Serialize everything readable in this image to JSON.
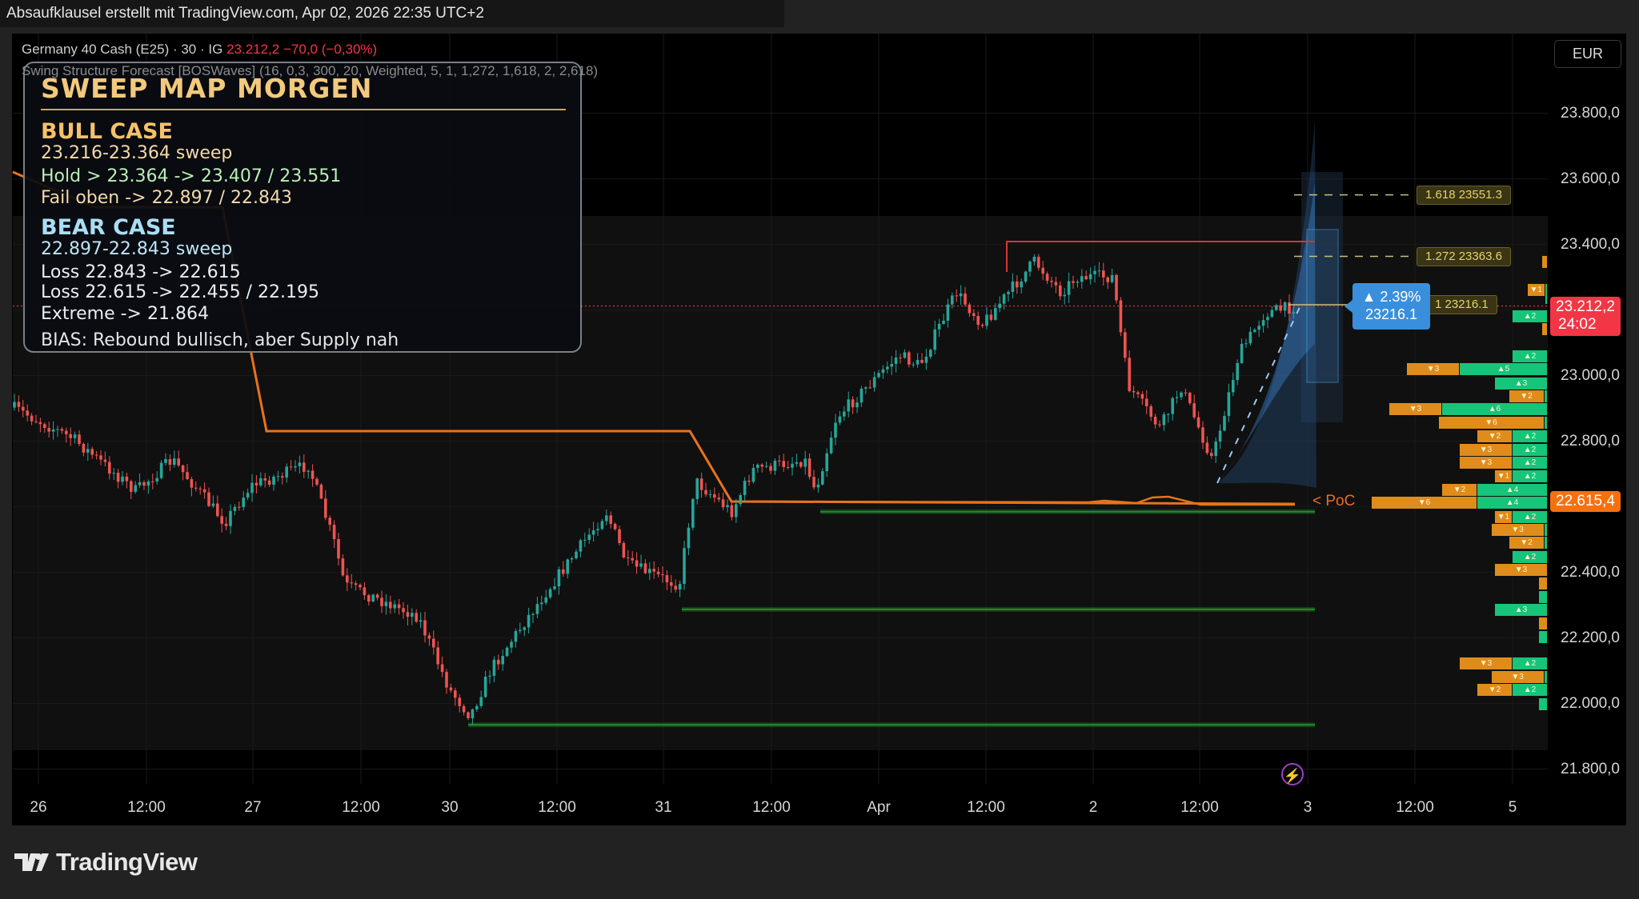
{
  "topbar": {
    "text": "Absaufklausel erstellt mit TradingView.com, Apr 02, 2026 22:35 UTC+2"
  },
  "legend": {
    "symbol": "Germany 40 Cash (E25) · 30 · IG",
    "last": "23.212,2",
    "change": "−70,0 (−0,30%)",
    "indicator": "Swing Structure Forecast [BOSWaves] (16, 0,3, 300, 20, Weighted, 5, 1, 1,272, 1,618, 2, 2,618)"
  },
  "overlay": {
    "title": "SWEEP MAP MORGEN",
    "bull_title": "BULL CASE",
    "bull_lines": [
      "23.216-23.364 sweep",
      "Hold > 23.364  ->  23.407 / 23.551",
      "Fail oben  ->  22.897 / 22.843"
    ],
    "bear_title": "BEAR CASE",
    "bear_lines": [
      "22.897-22.843 sweep",
      "Loss 22.843  ->  22.615",
      "Loss 22.615  ->  22.455 / 22.195",
      "Extreme  ->  21.864"
    ],
    "bias": "BIAS: Rebound bullisch, aber Supply nah"
  },
  "currency_button": "EUR",
  "price_axis": [
    "23.800,0",
    "23.600,0",
    "23.400,0",
    "23.000,0",
    "22.800,0",
    "22.400,0",
    "22.200,0",
    "22.000,0",
    "21.800,0"
  ],
  "price_axis_values": [
    23800,
    23600,
    23400,
    23000,
    22800,
    22400,
    22200,
    22000,
    21800
  ],
  "current_price": {
    "price": "23.212,2",
    "countdown": "24:02",
    "value": 23212.2,
    "color": "#f23645"
  },
  "poc_price": {
    "label": "22.615,4",
    "value": 22615.4,
    "color": "#f7700f"
  },
  "poc_marker": "< PoC",
  "time_axis": [
    "26",
    "12:00",
    "27",
    "12:00",
    "30",
    "12:00",
    "31",
    "12:00",
    "Apr",
    "12:00",
    "2",
    "12:00",
    "3",
    "12:00",
    "5"
  ],
  "fib_levels": [
    {
      "label": "1.618  23551.3",
      "value": 23551.3
    },
    {
      "label": "1.272  23363.6",
      "value": 23363.6
    },
    {
      "label": "1  23216.1",
      "value": 23216.1
    }
  ],
  "forecast_label": {
    "change": "▲ 2.39%",
    "target": "23216.1",
    "color": "#3a8fdc"
  },
  "levels": {
    "resistance": 23410,
    "supports": [
      22585,
      22287,
      21935
    ]
  },
  "volume_profile": [
    {
      "price": 23346,
      "down": 0.3,
      "up": 0
    },
    {
      "price": 23262,
      "down": 1,
      "up": 0.15
    },
    {
      "price": 23236,
      "down": 0,
      "up": 0.15
    },
    {
      "price": 23180,
      "down": 0,
      "up": 2
    },
    {
      "price": 23141,
      "down": 0.3,
      "up": 0
    },
    {
      "price": 23058,
      "down": 0,
      "up": 2
    },
    {
      "price": 23019,
      "down": 3,
      "up": 5
    },
    {
      "price": 22977,
      "down": 0,
      "up": 3
    },
    {
      "price": 22936,
      "down": 2,
      "up": 0.2
    },
    {
      "price": 22897,
      "down": 3,
      "up": 6
    },
    {
      "price": 22856,
      "down": 6,
      "up": 0.2
    },
    {
      "price": 22814,
      "down": 2,
      "up": 2
    },
    {
      "price": 22773,
      "down": 3,
      "up": 2
    },
    {
      "price": 22734,
      "down": 3,
      "up": 2
    },
    {
      "price": 22692,
      "down": 1,
      "up": 2
    },
    {
      "price": 22651,
      "down": 2,
      "up": 4
    },
    {
      "price": 22612,
      "down": 6,
      "up": 4
    },
    {
      "price": 22568,
      "down": 1,
      "up": 2
    },
    {
      "price": 22529,
      "down": 3,
      "up": 0.2
    },
    {
      "price": 22490,
      "down": 2,
      "up": 0.2
    },
    {
      "price": 22446,
      "down": 0,
      "up": 2
    },
    {
      "price": 22407,
      "down": 3,
      "up": 0
    },
    {
      "price": 22366,
      "down": 0.5,
      "up": 0
    },
    {
      "price": 22324,
      "down": 0,
      "up": 0.5
    },
    {
      "price": 22285,
      "down": 0,
      "up": 3
    },
    {
      "price": 22244,
      "down": 0.5,
      "up": 0
    },
    {
      "price": 22202,
      "down": 0,
      "up": 0.5
    },
    {
      "price": 22122,
      "down": 3,
      "up": 2
    },
    {
      "price": 22080,
      "down": 3,
      "up": 0.2
    },
    {
      "price": 22041,
      "down": 2,
      "up": 2
    },
    {
      "price": 21999,
      "down": 0,
      "up": 0.5
    }
  ],
  "colors": {
    "up": "#26a69a",
    "down": "#ef5350",
    "vp_up": "#16c47a",
    "vp_down": "#e08c1a",
    "trend": "#e8731a",
    "support": "#1f8f2c",
    "resistance": "#d8333a"
  },
  "logo": "TradingView"
}
